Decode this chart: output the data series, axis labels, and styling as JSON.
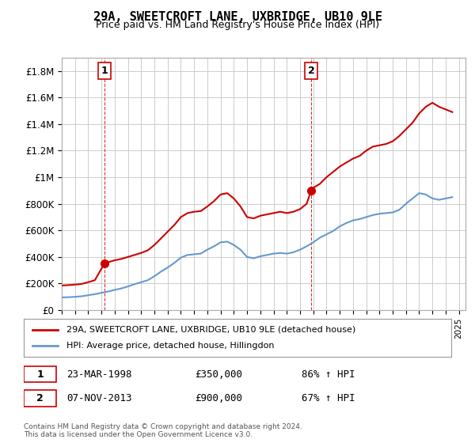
{
  "title": "29A, SWEETCROFT LANE, UXBRIDGE, UB10 9LE",
  "subtitle": "Price paid vs. HM Land Registry's House Price Index (HPI)",
  "ylabel_ticks": [
    "£0",
    "£200K",
    "£400K",
    "£600K",
    "£800K",
    "£1M",
    "£1.2M",
    "£1.4M",
    "£1.6M",
    "£1.8M"
  ],
  "ytick_values": [
    0,
    200000,
    400000,
    600000,
    800000,
    1000000,
    1200000,
    1400000,
    1600000,
    1800000
  ],
  "ylim": [
    0,
    1900000
  ],
  "xlim_start": 1995.0,
  "xlim_end": 2025.5,
  "background_color": "#ffffff",
  "grid_color": "#cccccc",
  "purchase1_year": 1998.22,
  "purchase1_price": 350000,
  "purchase2_year": 2013.84,
  "purchase2_price": 900000,
  "red_color": "#cc0000",
  "blue_color": "#6699cc",
  "dashed_color": "#cc0000",
  "legend_label_red": "29A, SWEETCROFT LANE, UXBRIDGE, UB10 9LE (detached house)",
  "legend_label_blue": "HPI: Average price, detached house, Hillingdon",
  "transaction1_label": "1",
  "transaction1_date": "23-MAR-1998",
  "transaction1_price": "£350,000",
  "transaction1_hpi": "86% ↑ HPI",
  "transaction2_label": "2",
  "transaction2_date": "07-NOV-2013",
  "transaction2_price": "£900,000",
  "transaction2_hpi": "67% ↑ HPI",
  "footer": "Contains HM Land Registry data © Crown copyright and database right 2024.\nThis data is licensed under the Open Government Licence v3.0.",
  "red_line_data_x": [
    1995.0,
    1995.5,
    1996.0,
    1996.5,
    1997.0,
    1997.5,
    1998.22,
    1998.5,
    1999.0,
    1999.5,
    2000.0,
    2000.5,
    2001.0,
    2001.5,
    2002.0,
    2002.5,
    2003.0,
    2003.5,
    2004.0,
    2004.5,
    2005.0,
    2005.5,
    2006.0,
    2006.5,
    2007.0,
    2007.5,
    2008.0,
    2008.5,
    2009.0,
    2009.5,
    2010.0,
    2010.5,
    2011.0,
    2011.5,
    2012.0,
    2012.5,
    2013.0,
    2013.5,
    2013.84,
    2014.0,
    2014.5,
    2015.0,
    2015.5,
    2016.0,
    2016.5,
    2017.0,
    2017.5,
    2018.0,
    2018.5,
    2019.0,
    2019.5,
    2020.0,
    2020.5,
    2021.0,
    2021.5,
    2022.0,
    2022.5,
    2023.0,
    2023.5,
    2024.0,
    2024.5
  ],
  "red_line_data_y": [
    185000,
    188000,
    192000,
    197000,
    210000,
    225000,
    350000,
    360000,
    375000,
    385000,
    400000,
    415000,
    430000,
    450000,
    490000,
    540000,
    590000,
    640000,
    700000,
    730000,
    740000,
    745000,
    780000,
    820000,
    870000,
    880000,
    840000,
    780000,
    700000,
    690000,
    710000,
    720000,
    730000,
    740000,
    730000,
    740000,
    760000,
    800000,
    900000,
    920000,
    950000,
    1000000,
    1040000,
    1080000,
    1110000,
    1140000,
    1160000,
    1200000,
    1230000,
    1240000,
    1250000,
    1270000,
    1310000,
    1360000,
    1410000,
    1480000,
    1530000,
    1560000,
    1530000,
    1510000,
    1490000
  ],
  "blue_line_data_x": [
    1995.0,
    1995.5,
    1996.0,
    1996.5,
    1997.0,
    1997.5,
    1998.0,
    1998.5,
    1999.0,
    1999.5,
    2000.0,
    2000.5,
    2001.0,
    2001.5,
    2002.0,
    2002.5,
    2003.0,
    2003.5,
    2004.0,
    2004.5,
    2005.0,
    2005.5,
    2006.0,
    2006.5,
    2007.0,
    2007.5,
    2008.0,
    2008.5,
    2009.0,
    2009.5,
    2010.0,
    2010.5,
    2011.0,
    2011.5,
    2012.0,
    2012.5,
    2013.0,
    2013.5,
    2014.0,
    2014.5,
    2015.0,
    2015.5,
    2016.0,
    2016.5,
    2017.0,
    2017.5,
    2018.0,
    2018.5,
    2019.0,
    2019.5,
    2020.0,
    2020.5,
    2021.0,
    2021.5,
    2022.0,
    2022.5,
    2023.0,
    2023.5,
    2024.0,
    2024.5
  ],
  "blue_line_data_y": [
    95000,
    97000,
    100000,
    104000,
    112000,
    120000,
    130000,
    140000,
    152000,
    163000,
    178000,
    195000,
    210000,
    225000,
    255000,
    290000,
    320000,
    355000,
    395000,
    415000,
    420000,
    425000,
    455000,
    480000,
    510000,
    515000,
    490000,
    455000,
    400000,
    390000,
    405000,
    415000,
    425000,
    430000,
    425000,
    435000,
    455000,
    480000,
    510000,
    545000,
    570000,
    595000,
    630000,
    655000,
    675000,
    685000,
    700000,
    715000,
    725000,
    730000,
    735000,
    755000,
    800000,
    840000,
    880000,
    870000,
    840000,
    830000,
    840000,
    850000
  ]
}
